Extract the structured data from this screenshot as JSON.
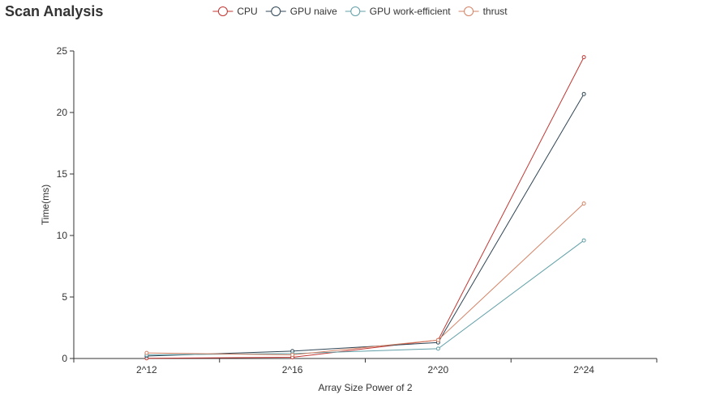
{
  "chart_data": {
    "type": "line",
    "title": "Scan Analysis",
    "xlabel": "Array Size Power of 2",
    "ylabel": "Time(ms)",
    "categories": [
      "2^12",
      "2^16",
      "2^20",
      "2^24"
    ],
    "ylim": [
      0,
      25
    ],
    "yticks": [
      0,
      5,
      10,
      15,
      20,
      25
    ],
    "legend_position": "top-center",
    "grid": false,
    "series": [
      {
        "name": "CPU",
        "color": "#c23531",
        "values": [
          0.02,
          0.1,
          1.5,
          24.5
        ]
      },
      {
        "name": "GPU naive",
        "color": "#2f4554",
        "values": [
          0.2,
          0.6,
          1.3,
          21.5
        ]
      },
      {
        "name": "GPU work-efficient",
        "color": "#61a0a8",
        "values": [
          0.3,
          0.4,
          0.8,
          9.6
        ]
      },
      {
        "name": "thrust",
        "color": "#d48265",
        "values": [
          0.45,
          0.3,
          1.5,
          12.6
        ]
      }
    ]
  }
}
